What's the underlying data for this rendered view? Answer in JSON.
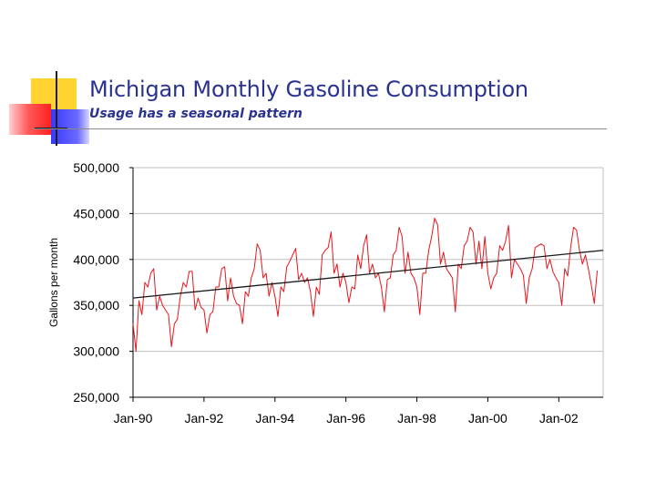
{
  "slide": {
    "title": "Michigan Monthly Gasoline Consumption",
    "subtitle": "Usage has a seasonal pattern"
  },
  "colors": {
    "title": "#2a3291",
    "series": "#e8151c",
    "trend": "#1a1a1a",
    "grid": "#c0c0c0",
    "deco_yellow": "#ffd430",
    "deco_red": "#ff3838",
    "deco_blue": "#3838ff"
  },
  "chart_data": {
    "type": "line",
    "title": "",
    "xlabel": "",
    "ylabel": "Gallons per month",
    "ylim": [
      250000,
      500000
    ],
    "yticks": [
      250000,
      300000,
      350000,
      400000,
      450000,
      500000
    ],
    "ytick_labels": [
      "250,000",
      "300,000",
      "350,000",
      "400,000",
      "450,000",
      "500,000"
    ],
    "xlim": [
      "1990-01",
      "2003-04"
    ],
    "xticks": [
      "1990-01",
      "1992-01",
      "1994-01",
      "1996-01",
      "1998-01",
      "2000-01",
      "2002-01"
    ],
    "xtick_labels": [
      "Jan-90",
      "Jan-92",
      "Jan-94",
      "Jan-96",
      "Jan-98",
      "Jan-00",
      "Jan-02"
    ],
    "grid": true,
    "series": [
      {
        "name": "",
        "start": "1990-01",
        "frequency": "monthly",
        "values": [
          330000,
          300000,
          355000,
          340000,
          375000,
          370000,
          385000,
          390000,
          345000,
          360000,
          350000,
          345000,
          340000,
          305000,
          330000,
          335000,
          360000,
          375000,
          370000,
          387000,
          387000,
          345000,
          358000,
          348000,
          345000,
          320000,
          340000,
          343000,
          370000,
          370000,
          390000,
          392000,
          355000,
          380000,
          360000,
          352000,
          350000,
          330000,
          365000,
          360000,
          380000,
          390000,
          417000,
          410000,
          380000,
          385000,
          360000,
          375000,
          360000,
          338000,
          370000,
          365000,
          392000,
          398000,
          405000,
          412000,
          378000,
          385000,
          375000,
          380000,
          365000,
          338000,
          370000,
          362000,
          405000,
          410000,
          413000,
          430000,
          385000,
          395000,
          370000,
          385000,
          375000,
          353000,
          370000,
          368000,
          405000,
          390000,
          415000,
          427000,
          385000,
          395000,
          380000,
          385000,
          370000,
          343000,
          378000,
          380000,
          405000,
          410000,
          435000,
          425000,
          385000,
          408000,
          385000,
          380000,
          370000,
          340000,
          385000,
          385000,
          410000,
          425000,
          445000,
          438000,
          395000,
          408000,
          390000,
          385000,
          380000,
          343000,
          395000,
          390000,
          415000,
          420000,
          435000,
          430000,
          395000,
          420000,
          390000,
          425000,
          385000,
          368000,
          380000,
          385000,
          415000,
          410000,
          420000,
          437000,
          380000,
          400000,
          395000,
          390000,
          383000,
          352000,
          380000,
          390000,
          413000,
          415000,
          417000,
          415000,
          390000,
          400000,
          387000,
          380000,
          375000,
          350000,
          390000,
          382000,
          413000,
          435000,
          432000,
          410000,
          395000,
          405000,
          390000,
          372000,
          352000,
          388000
        ]
      },
      {
        "name": "",
        "kind": "linear-trend",
        "start": "1990-01",
        "end": "2003-04",
        "values": [
          358000,
          410000
        ]
      }
    ]
  }
}
